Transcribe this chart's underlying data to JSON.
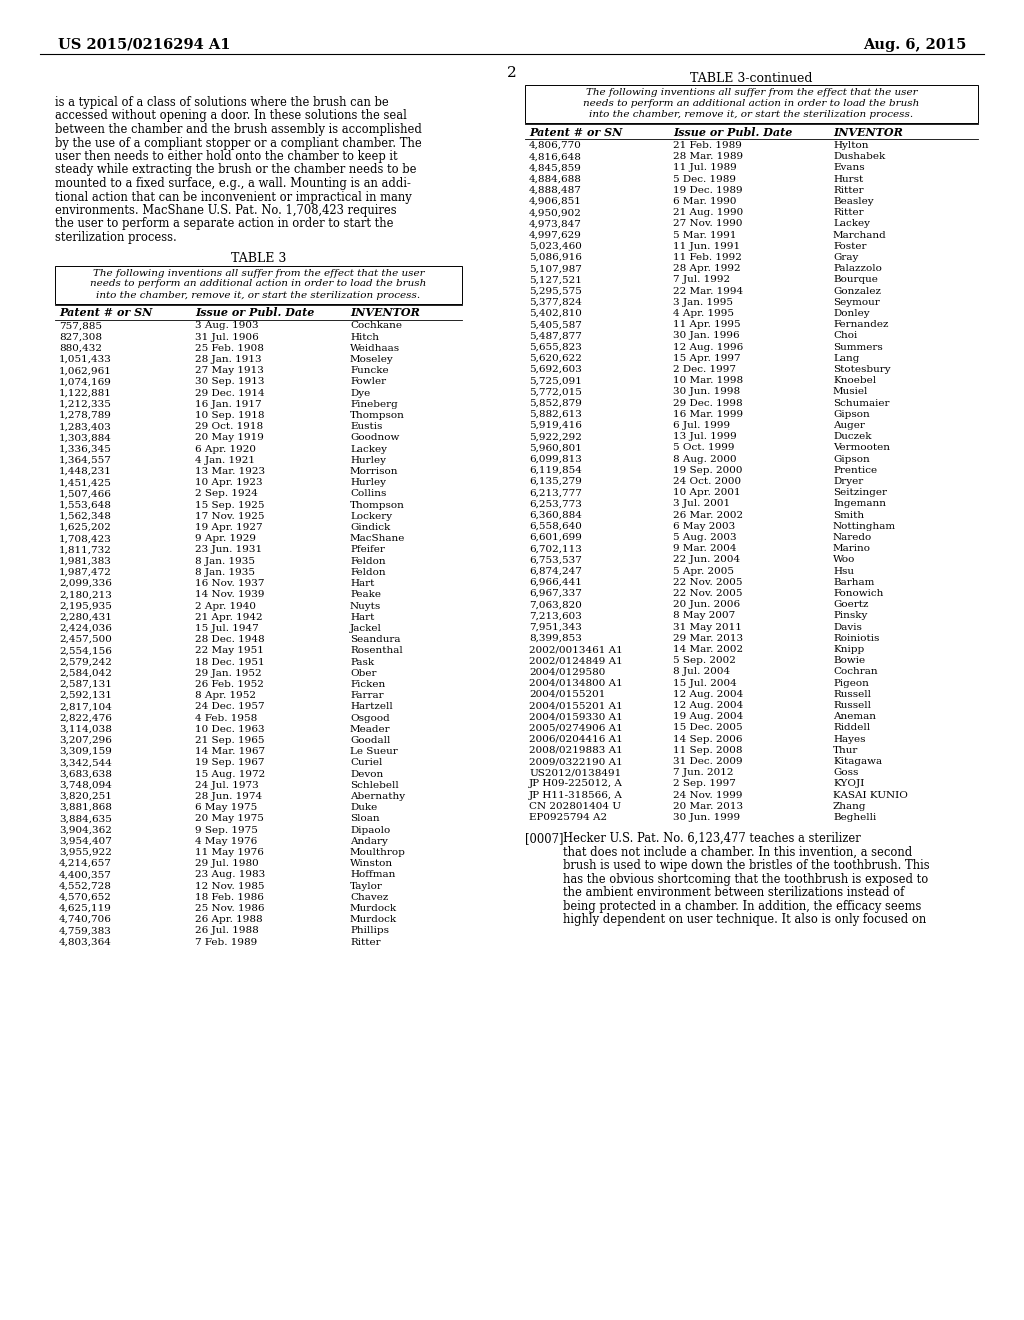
{
  "background_color": "#ffffff",
  "header_left": "US 2015/0216294 A1",
  "header_right": "Aug. 6, 2015",
  "page_number": "2",
  "para_lines": [
    "is a typical of a class of solutions where the brush can be",
    "accessed without opening a door. In these solutions the seal",
    "between the chamber and the brush assembly is accomplished",
    "by the use of a compliant stopper or a compliant chamber. The",
    "user then needs to either hold onto the chamber to keep it",
    "steady while extracting the brush or the chamber needs to be",
    "mounted to a fixed surface, e.g., a wall. Mounting is an addi-",
    "tional action that can be inconvenient or impractical in many",
    "environments. MacShane U.S. Pat. No. 1,708,423 requires",
    "the user to perform a separate action in order to start the",
    "sterilization process."
  ],
  "table3_title": "TABLE 3",
  "table3_note_lines": [
    "The following inventions all suffer from the effect that the user",
    "needs to perform an additional action in order to load the brush",
    "into the chamber, remove it, or start the sterilization process."
  ],
  "table3_headers": [
    "Patent # or SN",
    "Issue or Publ. Date",
    "INVENTOR"
  ],
  "table3_data": [
    [
      "757,885",
      "3 Aug. 1903",
      "Cochkane"
    ],
    [
      "827,308",
      "31 Jul. 1906",
      "Hitch"
    ],
    [
      "880,432",
      "25 Feb. 1908",
      "Weidhaas"
    ],
    [
      "1,051,433",
      "28 Jan. 1913",
      "Moseley"
    ],
    [
      "1,062,961",
      "27 May 1913",
      "Funcke"
    ],
    [
      "1,074,169",
      "30 Sep. 1913",
      "Fowler"
    ],
    [
      "1,122,881",
      "29 Dec. 1914",
      "Dye"
    ],
    [
      "1,212,335",
      "16 Jan. 1917",
      "Fineberg"
    ],
    [
      "1,278,789",
      "10 Sep. 1918",
      "Thompson"
    ],
    [
      "1,283,403",
      "29 Oct. 1918",
      "Eustis"
    ],
    [
      "1,303,884",
      "20 May 1919",
      "Goodnow"
    ],
    [
      "1,336,345",
      "6 Apr. 1920",
      "Lackey"
    ],
    [
      "1,364,557",
      "4 Jan. 1921",
      "Hurley"
    ],
    [
      "1,448,231",
      "13 Mar. 1923",
      "Morrison"
    ],
    [
      "1,451,425",
      "10 Apr. 1923",
      "Hurley"
    ],
    [
      "1,507,466",
      "2 Sep. 1924",
      "Collins"
    ],
    [
      "1,553,648",
      "15 Sep. 1925",
      "Thompson"
    ],
    [
      "1,562,348",
      "17 Nov. 1925",
      "Lockery"
    ],
    [
      "1,625,202",
      "19 Apr. 1927",
      "Gindick"
    ],
    [
      "1,708,423",
      "9 Apr. 1929",
      "MacShane"
    ],
    [
      "1,811,732",
      "23 Jun. 1931",
      "Pfeifer"
    ],
    [
      "1,981,383",
      "8 Jan. 1935",
      "Feldon"
    ],
    [
      "1,987,472",
      "8 Jan. 1935",
      "Feldon"
    ],
    [
      "2,099,336",
      "16 Nov. 1937",
      "Hart"
    ],
    [
      "2,180,213",
      "14 Nov. 1939",
      "Peake"
    ],
    [
      "2,195,935",
      "2 Apr. 1940",
      "Nuyts"
    ],
    [
      "2,280,431",
      "21 Apr. 1942",
      "Hart"
    ],
    [
      "2,424,036",
      "15 Jul. 1947",
      "Jackel"
    ],
    [
      "2,457,500",
      "28 Dec. 1948",
      "Seandura"
    ],
    [
      "2,554,156",
      "22 May 1951",
      "Rosenthal"
    ],
    [
      "2,579,242",
      "18 Dec. 1951",
      "Pask"
    ],
    [
      "2,584,042",
      "29 Jan. 1952",
      "Ober"
    ],
    [
      "2,587,131",
      "26 Feb. 1952",
      "Ficken"
    ],
    [
      "2,592,131",
      "8 Apr. 1952",
      "Farrar"
    ],
    [
      "2,817,104",
      "24 Dec. 1957",
      "Hartzell"
    ],
    [
      "2,822,476",
      "4 Feb. 1958",
      "Osgood"
    ],
    [
      "3,114,038",
      "10 Dec. 1963",
      "Meader"
    ],
    [
      "3,207,296",
      "21 Sep. 1965",
      "Goodall"
    ],
    [
      "3,309,159",
      "14 Mar. 1967",
      "Le Sueur"
    ],
    [
      "3,342,544",
      "19 Sep. 1967",
      "Curiel"
    ],
    [
      "3,683,638",
      "15 Aug. 1972",
      "Devon"
    ],
    [
      "3,748,094",
      "24 Jul. 1973",
      "Schlebell"
    ],
    [
      "3,820,251",
      "28 Jun. 1974",
      "Abernathy"
    ],
    [
      "3,881,868",
      "6 May 1975",
      "Duke"
    ],
    [
      "3,884,635",
      "20 May 1975",
      "Sloan"
    ],
    [
      "3,904,362",
      "9 Sep. 1975",
      "Dipaolo"
    ],
    [
      "3,954,407",
      "4 May 1976",
      "Andary"
    ],
    [
      "3,955,922",
      "11 May 1976",
      "Moulthrop"
    ],
    [
      "4,214,657",
      "29 Jul. 1980",
      "Winston"
    ],
    [
      "4,400,357",
      "23 Aug. 1983",
      "Hoffman"
    ],
    [
      "4,552,728",
      "12 Nov. 1985",
      "Taylor"
    ],
    [
      "4,570,652",
      "18 Feb. 1986",
      "Chavez"
    ],
    [
      "4,625,119",
      "25 Nov. 1986",
      "Murdock"
    ],
    [
      "4,740,706",
      "26 Apr. 1988",
      "Murdock"
    ],
    [
      "4,759,383",
      "26 Jul. 1988",
      "Phillips"
    ],
    [
      "4,803,364",
      "7 Feb. 1989",
      "Ritter"
    ]
  ],
  "table3cont_title": "TABLE 3-continued",
  "table3cont_note_lines": [
    "The following inventions all suffer from the effect that the user",
    "needs to perform an additional action in order to load the brush",
    "into the chamber, remove it, or start the sterilization process."
  ],
  "table3cont_headers": [
    "Patent # or SN",
    "Issue or Publ. Date",
    "INVENTOR"
  ],
  "table3cont_data": [
    [
      "4,806,770",
      "21 Feb. 1989",
      "Hylton"
    ],
    [
      "4,816,648",
      "28 Mar. 1989",
      "Dushabek"
    ],
    [
      "4,845,859",
      "11 Jul. 1989",
      "Evans"
    ],
    [
      "4,884,688",
      "5 Dec. 1989",
      "Hurst"
    ],
    [
      "4,888,487",
      "19 Dec. 1989",
      "Ritter"
    ],
    [
      "4,906,851",
      "6 Mar. 1990",
      "Beasley"
    ],
    [
      "4,950,902",
      "21 Aug. 1990",
      "Ritter"
    ],
    [
      "4,973,847",
      "27 Nov. 1990",
      "Lackey"
    ],
    [
      "4,997,629",
      "5 Mar. 1991",
      "Marchand"
    ],
    [
      "5,023,460",
      "11 Jun. 1991",
      "Foster"
    ],
    [
      "5,086,916",
      "11 Feb. 1992",
      "Gray"
    ],
    [
      "5,107,987",
      "28 Apr. 1992",
      "Palazzolo"
    ],
    [
      "5,127,521",
      "7 Jul. 1992",
      "Bourque"
    ],
    [
      "5,295,575",
      "22 Mar. 1994",
      "Gonzalez"
    ],
    [
      "5,377,824",
      "3 Jan. 1995",
      "Seymour"
    ],
    [
      "5,402,810",
      "4 Apr. 1995",
      "Donley"
    ],
    [
      "5,405,587",
      "11 Apr. 1995",
      "Fernandez"
    ],
    [
      "5,487,877",
      "30 Jan. 1996",
      "Choi"
    ],
    [
      "5,655,823",
      "12 Aug. 1996",
      "Summers"
    ],
    [
      "5,620,622",
      "15 Apr. 1997",
      "Lang"
    ],
    [
      "5,692,603",
      "2 Dec. 1997",
      "Stotesbury"
    ],
    [
      "5,725,091",
      "10 Mar. 1998",
      "Knoebel"
    ],
    [
      "5,772,015",
      "30 Jun. 1998",
      "Musiel"
    ],
    [
      "5,852,879",
      "29 Dec. 1998",
      "Schumaier"
    ],
    [
      "5,882,613",
      "16 Mar. 1999",
      "Gipson"
    ],
    [
      "5,919,416",
      "6 Jul. 1999",
      "Auger"
    ],
    [
      "5,922,292",
      "13 Jul. 1999",
      "Duczek"
    ],
    [
      "5,960,801",
      "5 Oct. 1999",
      "Vermooten"
    ],
    [
      "6,099,813",
      "8 Aug. 2000",
      "Gipson"
    ],
    [
      "6,119,854",
      "19 Sep. 2000",
      "Prentice"
    ],
    [
      "6,135,279",
      "24 Oct. 2000",
      "Dryer"
    ],
    [
      "6,213,777",
      "10 Apr. 2001",
      "Seitzinger"
    ],
    [
      "6,253,773",
      "3 Jul. 2001",
      "Ingemann"
    ],
    [
      "6,360,884",
      "26 Mar. 2002",
      "Smith"
    ],
    [
      "6,558,640",
      "6 May 2003",
      "Nottingham"
    ],
    [
      "6,601,699",
      "5 Aug. 2003",
      "Naredo"
    ],
    [
      "6,702,113",
      "9 Mar. 2004",
      "Marino"
    ],
    [
      "6,753,537",
      "22 Jun. 2004",
      "Woo"
    ],
    [
      "6,874,247",
      "5 Apr. 2005",
      "Hsu"
    ],
    [
      "6,966,441",
      "22 Nov. 2005",
      "Barham"
    ],
    [
      "6,967,337",
      "22 Nov. 2005",
      "Fonowich"
    ],
    [
      "7,063,820",
      "20 Jun. 2006",
      "Goertz"
    ],
    [
      "7,213,603",
      "8 May 2007",
      "Pinsky"
    ],
    [
      "7,951,343",
      "31 May 2011",
      "Davis"
    ],
    [
      "8,399,853",
      "29 Mar. 2013",
      "Roiniotis"
    ],
    [
      "2002/0013461 A1",
      "14 Mar. 2002",
      "Knipp"
    ],
    [
      "2002/0124849 A1",
      "5 Sep. 2002",
      "Bowie"
    ],
    [
      "2004/0129580",
      "8 Jul. 2004",
      "Cochran"
    ],
    [
      "2004/0134800 A1",
      "15 Jul. 2004",
      "Pigeon"
    ],
    [
      "2004/0155201",
      "12 Aug. 2004",
      "Russell"
    ],
    [
      "2004/0155201 A1",
      "12 Aug. 2004",
      "Russell"
    ],
    [
      "2004/0159330 A1",
      "19 Aug. 2004",
      "Aneman"
    ],
    [
      "2005/0274906 A1",
      "15 Dec. 2005",
      "Riddell"
    ],
    [
      "2006/0204416 A1",
      "14 Sep. 2006",
      "Hayes"
    ],
    [
      "2008/0219883 A1",
      "11 Sep. 2008",
      "Thur"
    ],
    [
      "2009/0322190 A1",
      "31 Dec. 2009",
      "Kitagawa"
    ],
    [
      "US2012/0138491",
      "7 Jun. 2012",
      "Goss"
    ],
    [
      "JP H09-225012, A",
      "2 Sep. 1997",
      "KYOJI"
    ],
    [
      "JP H11-318566, A",
      "24 Nov. 1999",
      "KASAI KUNIO"
    ],
    [
      "CN 202801404 U",
      "20 Mar. 2013",
      "Zhang"
    ],
    [
      "EP0925794 A2",
      "30 Jun. 1999",
      "Beghelli"
    ]
  ],
  "bottom_para_ref": "[0007]",
  "bottom_para_lines": [
    "Hecker U.S. Pat. No. 6,123,477 teaches a sterilizer",
    "that does not include a chamber. In this invention, a second",
    "brush is used to wipe down the bristles of the toothbrush. This",
    "has the obvious shortcoming that the toothbrush is exposed to",
    "the ambient environment between sterilizations instead of",
    "being protected in a chamber. In addition, the efficacy seems",
    "highly dependent on user technique. It also is only focused on"
  ]
}
